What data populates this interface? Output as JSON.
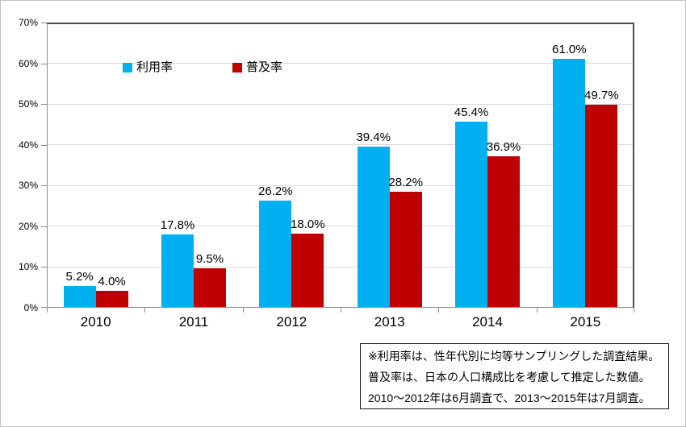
{
  "chart_data": {
    "type": "bar",
    "title": "",
    "xlabel": "",
    "ylabel": "",
    "categories": [
      "2010",
      "2011",
      "2012",
      "2013",
      "2014",
      "2015"
    ],
    "series": [
      {
        "name": "利用率",
        "color": "#00B0F0",
        "values": [
          5.2,
          17.8,
          26.2,
          39.4,
          45.4,
          61.0
        ],
        "labels": [
          "5.2%",
          "17.8%",
          "26.2%",
          "39.4%",
          "45.4%",
          "61.0%"
        ]
      },
      {
        "name": "普及率",
        "color": "#C00000",
        "values": [
          4.0,
          9.5,
          18.0,
          28.2,
          36.9,
          49.7
        ],
        "labels": [
          "4.0%",
          "9.5%",
          "18.0%",
          "28.2%",
          "36.9%",
          "49.7%"
        ]
      }
    ],
    "ylim": [
      0,
      70
    ],
    "yticks": [
      "0%",
      "10%",
      "20%",
      "30%",
      "40%",
      "50%",
      "60%",
      "70%"
    ],
    "grid": true,
    "legend_position": "top-inside"
  },
  "footnote": {
    "lines": [
      "※利用率は、性年代別に均等サンプリングした調査結果。",
      "普及率は、日本の人口構成比を考慮して推定した数値。",
      "2010〜2012年は6月調査で、2013〜2015年は7月調査。"
    ]
  },
  "colors": {
    "gridline": "#D9D9D9",
    "axis": "#8C8C8C",
    "plot_border": "#4D4D4D",
    "text": "#000000",
    "canvas_border": "#C3C3C3"
  }
}
